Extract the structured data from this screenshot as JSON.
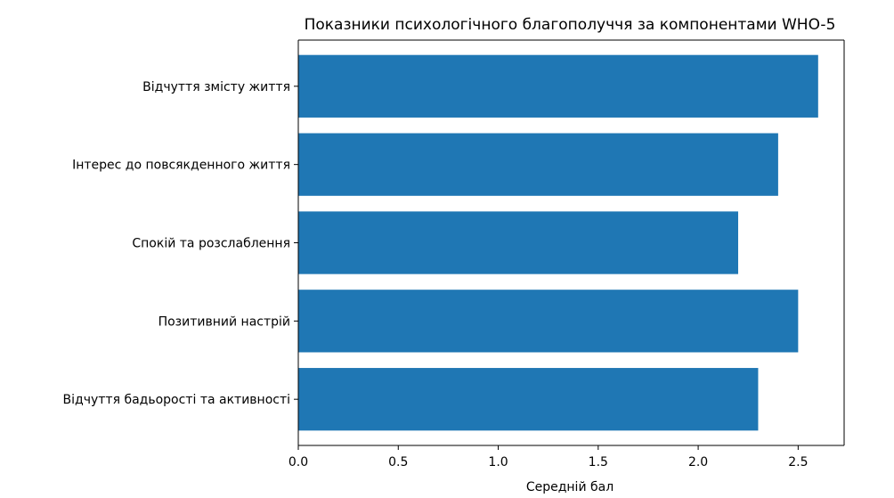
{
  "chart_data": {
    "type": "bar",
    "orientation": "horizontal",
    "title": "Показники психологічного благополуччя за компонентами WHO-5",
    "xlabel": "Середній бал",
    "ylabel": "",
    "categories": [
      "Відчуття бадьорості та активності",
      "Позитивний настрій",
      "Спокій та розслаблення",
      "Інтерес до повсякденного життя",
      "Відчуття змісту життя"
    ],
    "values": [
      2.3,
      2.5,
      2.2,
      2.4,
      2.6
    ],
    "xlim": [
      0,
      2.73
    ],
    "xticks": [
      0,
      0.5,
      1.0,
      1.5,
      2.0,
      2.5
    ],
    "xtick_labels": [
      "0.0",
      "0.5",
      "1.0",
      "1.5",
      "2.0",
      "2.5"
    ],
    "bar_color": "#1f77b4",
    "grid": false,
    "legend": "none"
  }
}
